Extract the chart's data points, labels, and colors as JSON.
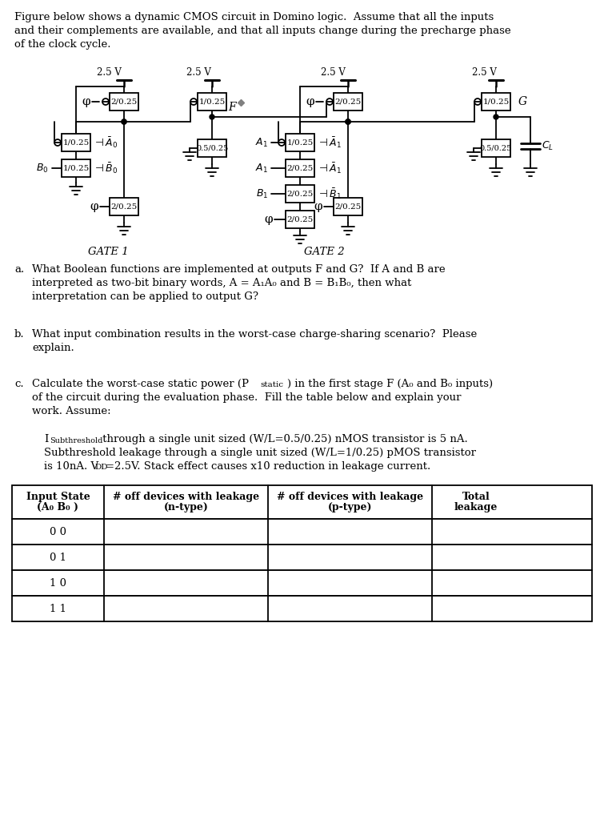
{
  "bg_color": "#ffffff",
  "intro_lines": [
    "Figure below shows a dynamic CMOS circuit in Domino logic.  Assume that all the inputs",
    "and their complements are available, and that all inputs change during the precharge phase",
    "of the clock cycle."
  ],
  "qa": "a.   What Boolean functions are implemented at outputs F and G?  If A and B are\n     interpreted as two-bit binary words, A = A₁A₀ and B = B₁B₀, then what\n     interpretation can be applied to output G?",
  "qb": "b.   What input combination results in the worst-case charge-sharing scenario?  Please\n     explain.",
  "qc_line1": "c.   Calculate the worst-case static power (P",
  "qc_line1b": "static",
  "qc_line1c": ") in the first stage F (A₀ and B₀ inputs)",
  "qc_line2": "     of the circuit during the evaluation phase.  Fill the table below and explain your",
  "qc_line3": "     work. Assume:",
  "assume1a": "I",
  "assume1b": "Subthreshold",
  "assume1c": " through a single unit sized (W/L=0.5/0.25) nMOS transistor is 5 nA.",
  "assume2": "     Subthreshold leakage through a single unit sized (W/L=1/0.25) pMOS transistor",
  "assume3": "     is 10nA. V",
  "assume3b": "DD",
  "assume3c": "=2.5V. Stack effect causes x10 reduction in leakage current.",
  "table_col0": "Input State\n(A₀ B₀ )",
  "table_col1": "# off devices with leakage\n(n-type)",
  "table_col2": "# off devices with leakage\n(p-type)",
  "table_col3": "Total\nleakage",
  "table_rows": [
    "0 0",
    "0 1",
    "1 0",
    "1 1"
  ]
}
